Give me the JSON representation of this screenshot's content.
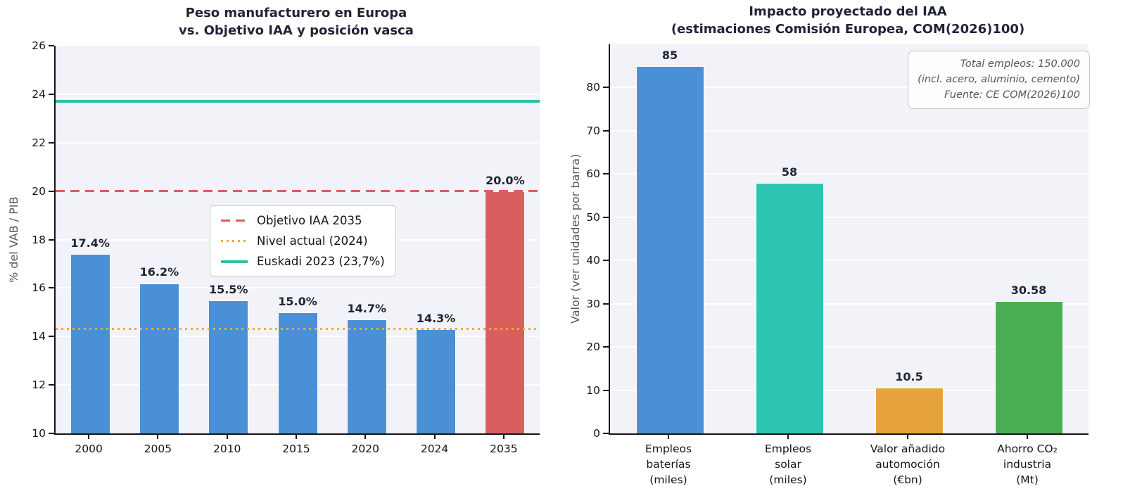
{
  "chart_data": [
    {
      "type": "bar",
      "title_lines": [
        "Peso manufacturero en Europa",
        "vs. Objetivo IAA y posición vasca"
      ],
      "title": "Peso manufacturero en Europa vs. Objetivo IAA y posición vasca",
      "ylabel": "% del VAB / PIB",
      "ylim": [
        10,
        26
      ],
      "yticks": [
        10,
        12,
        14,
        16,
        18,
        20,
        22,
        24,
        26
      ],
      "grid": true,
      "legend_position": "upper-center-inside",
      "categories": [
        "2000",
        "2005",
        "2010",
        "2015",
        "2020",
        "2024",
        "2035"
      ],
      "values": [
        17.4,
        16.2,
        15.5,
        15.0,
        14.7,
        14.3,
        20.0
      ],
      "bar_labels": [
        "17.4%",
        "16.2%",
        "15.5%",
        "15.0%",
        "14.7%",
        "14.3%",
        "20.0%"
      ],
      "bar_colors": [
        "#4a90d6",
        "#4a90d6",
        "#4a90d6",
        "#4a90d6",
        "#4a90d6",
        "#4a90d6",
        "#d95f5f"
      ],
      "ref_lines": [
        {
          "y": 20.0,
          "style": "dashed",
          "color": "#e25c5c",
          "label": "Objetivo IAA 2035"
        },
        {
          "y": 14.3,
          "style": "dotted",
          "color": "#edaa3f",
          "label": "Nivel actual (2024)"
        },
        {
          "y": 23.7,
          "style": "solid",
          "color": "#2bc0a7",
          "label": "Euskadi 2023 (23,7%)"
        }
      ]
    },
    {
      "type": "bar",
      "title_lines": [
        "Impacto proyectado del IAA",
        "(estimaciones Comisión Europea, COM(2026)100)"
      ],
      "title": "Impacto proyectado del IAA (estimaciones Comisión Europea, COM(2026)100)",
      "ylabel": "Valor (ver unidades por barra)",
      "ylim": [
        0,
        90
      ],
      "yticks": [
        0,
        10,
        20,
        30,
        40,
        50,
        60,
        70,
        80
      ],
      "grid": true,
      "categories": [
        [
          "Empleos",
          "baterías",
          "(miles)"
        ],
        [
          "Empleos",
          "solar",
          "(miles)"
        ],
        [
          "Valor añadido",
          "automoción",
          "(€bn)"
        ],
        [
          "Ahorro CO₂",
          "industria",
          "(Mt)"
        ]
      ],
      "values": [
        85,
        58,
        10.5,
        30.58
      ],
      "bar_labels": [
        "85",
        "58",
        "10.5",
        "30.58"
      ],
      "bar_colors": [
        "#4a90d6",
        "#2fc3b2",
        "#e7a33b",
        "#4cae52"
      ],
      "annotation_lines": [
        "Total empleos: 150.000",
        "(incl. acero, aluminio, cemento)",
        "Fuente: CE COM(2026)100"
      ]
    }
  ]
}
